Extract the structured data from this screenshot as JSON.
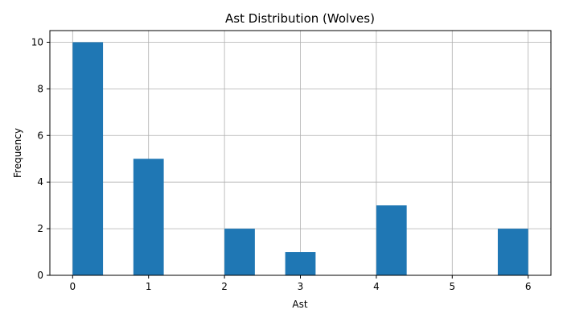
{
  "chart_data": {
    "type": "bar",
    "title": "Ast Distribution (Wolves)",
    "xlabel": "Ast",
    "ylabel": "Frequency",
    "xlim": [
      -0.3,
      6.3
    ],
    "ylim": [
      0,
      10.5
    ],
    "xticks": [
      0,
      1,
      2,
      3,
      4,
      5,
      6
    ],
    "yticks": [
      0,
      2,
      4,
      6,
      8,
      10
    ],
    "grid": true,
    "bar_color": "#1f77b4",
    "bins": [
      {
        "start": 0.0,
        "end": 0.4,
        "count": 10
      },
      {
        "start": 0.8,
        "end": 1.2,
        "count": 5
      },
      {
        "start": 2.0,
        "end": 2.4,
        "count": 2
      },
      {
        "start": 2.8,
        "end": 3.2,
        "count": 1
      },
      {
        "start": 4.0,
        "end": 4.4,
        "count": 3
      },
      {
        "start": 5.6,
        "end": 6.0,
        "count": 2
      }
    ]
  }
}
